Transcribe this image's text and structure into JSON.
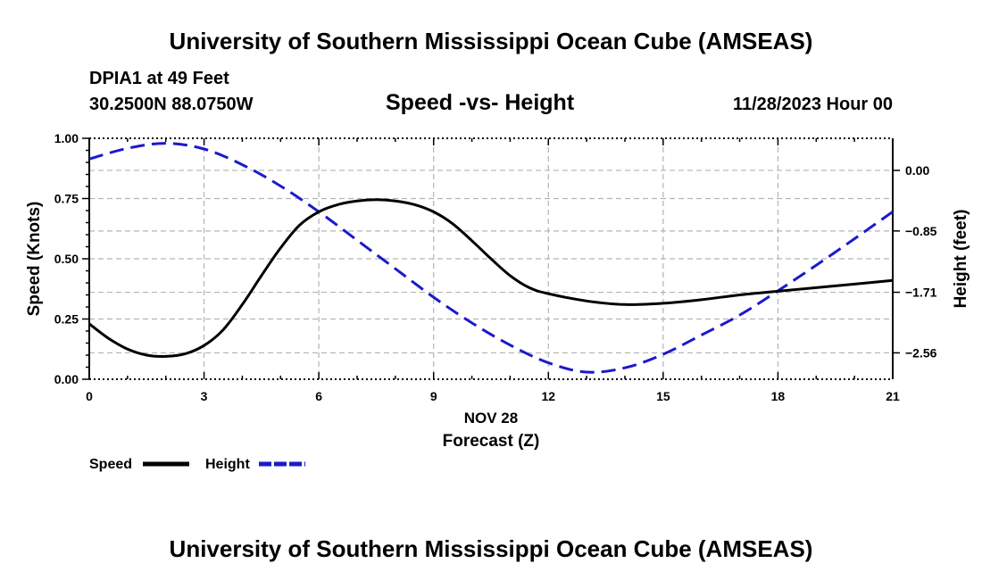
{
  "header": {
    "title_top": "University of Southern Mississippi Ocean Cube (AMSEAS)",
    "station": "DPIA1 at 49 Feet",
    "location": "30.2500N  88.0750W",
    "chart_title": "Speed -vs- Height",
    "datetime": "11/28/2023 Hour 00",
    "title_bottom": "University of Southern Mississippi Ocean Cube (AMSEAS)"
  },
  "colors": {
    "speed": "#000000",
    "height": "#1a1acc",
    "grid": "#b4b4b4"
  },
  "chart_data": {
    "type": "line",
    "title": "Speed -vs- Height",
    "xlabel": "Forecast (Z)",
    "xlabel_date": "NOV 28",
    "ylabel": "Speed (Knots)",
    "y2label": "Height (feet)",
    "xlim": [
      0,
      21
    ],
    "ylim": [
      0,
      1
    ],
    "y2lim": [
      -2.93,
      0.45
    ],
    "x_ticks": [
      0,
      3,
      6,
      9,
      12,
      15,
      18,
      21
    ],
    "x_tick_labels": [
      "0",
      "3",
      "6",
      "9",
      "12",
      "15",
      "18",
      "21"
    ],
    "y_ticks": [
      0,
      0.25,
      0.5,
      0.75,
      1
    ],
    "y_tick_labels": [
      "0.00",
      "0.25",
      "0.50",
      "0.75",
      "1.00"
    ],
    "y2_ticks": [
      0,
      -0.85,
      -1.71,
      -2.56
    ],
    "y2_tick_labels": [
      "0.00",
      "−0.85",
      "−1.71",
      "−2.56"
    ],
    "grid": true,
    "legend_position": "bottom-left",
    "series": [
      {
        "name": "Speed",
        "axis": "left",
        "style": "solid",
        "x": [
          0,
          0.5,
          1,
          1.5,
          2,
          2.5,
          3,
          3.5,
          4,
          4.5,
          5,
          5.5,
          6,
          6.5,
          7,
          7.5,
          8,
          8.5,
          9,
          9.5,
          10,
          10.5,
          11,
          11.5,
          12,
          13,
          14,
          15,
          16,
          17,
          18,
          19,
          20,
          21
        ],
        "values": [
          0.23,
          0.17,
          0.125,
          0.1,
          0.095,
          0.105,
          0.14,
          0.205,
          0.31,
          0.43,
          0.545,
          0.64,
          0.695,
          0.725,
          0.74,
          0.745,
          0.74,
          0.725,
          0.695,
          0.645,
          0.575,
          0.5,
          0.43,
          0.38,
          0.355,
          0.325,
          0.31,
          0.315,
          0.33,
          0.35,
          0.365,
          0.38,
          0.395,
          0.41
        ]
      },
      {
        "name": "Height",
        "axis": "right",
        "style": "dashed",
        "x": [
          0,
          1,
          2,
          3,
          4,
          5,
          6,
          7,
          8,
          9,
          10,
          11,
          12,
          13,
          14,
          15,
          16,
          17,
          18,
          19,
          20,
          21
        ],
        "values": [
          0.16,
          0.31,
          0.38,
          0.3,
          0.08,
          -0.22,
          -0.58,
          -0.98,
          -1.38,
          -1.78,
          -2.14,
          -2.45,
          -2.7,
          -2.83,
          -2.77,
          -2.58,
          -2.31,
          -2.03,
          -1.69,
          -1.33,
          -0.96,
          -0.58
        ]
      }
    ]
  }
}
